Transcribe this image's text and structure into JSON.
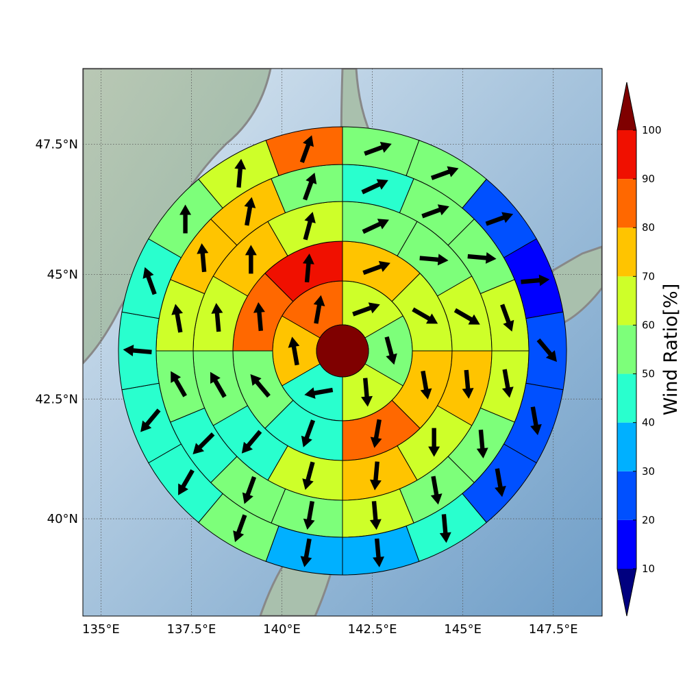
{
  "chart_data": {
    "type": "polar_sectors",
    "projection": "mercator",
    "grid": true,
    "xlim": [
      134.5,
      148.85
    ],
    "ylim": [
      37.9,
      48.9
    ],
    "xticks": [
      {
        "value": 135,
        "label": "135°E"
      },
      {
        "value": 137.5,
        "label": "137.5°E"
      },
      {
        "value": 140,
        "label": "140°E"
      },
      {
        "value": 142.5,
        "label": "142.5°E"
      },
      {
        "value": 145,
        "label": "145°E"
      },
      {
        "value": 147.5,
        "label": "147.5°E"
      }
    ],
    "yticks": [
      {
        "value": 40,
        "label": "40°N"
      },
      {
        "value": 42.5,
        "label": "42.5°N"
      },
      {
        "value": 45,
        "label": "45°N"
      },
      {
        "value": 47.5,
        "label": "47.5°N"
      }
    ],
    "center_value": 105,
    "rings": [
      {
        "values": [
          65,
          55,
          65,
          45,
          75,
          85
        ],
        "directions": [
          70,
          165,
          175,
          260,
          350,
          10
        ]
      },
      {
        "values": [
          75,
          65,
          75,
          85,
          45,
          55,
          85,
          95
        ],
        "directions": [
          70,
          120,
          170,
          190,
          200,
          320,
          355,
          5
        ]
      },
      {
        "values": [
          55,
          55,
          65,
          75,
          65,
          75,
          65,
          45,
          55,
          65,
          75,
          65
        ],
        "directions": [
          65,
          95,
          120,
          175,
          180,
          185,
          195,
          220,
          330,
          355,
          0,
          15
        ]
      },
      {
        "values": [
          45,
          55,
          55,
          65,
          65,
          55,
          55,
          65,
          55,
          55,
          45,
          55,
          65,
          75,
          75,
          55
        ],
        "directions": [
          65,
          70,
          95,
          160,
          170,
          175,
          170,
          175,
          190,
          200,
          225,
          330,
          350,
          355,
          10,
          20
        ]
      },
      {
        "values": [
          55,
          55,
          25,
          15,
          25,
          25,
          25,
          45,
          35,
          35,
          55,
          45,
          45,
          45,
          45,
          55,
          65,
          85
        ],
        "directions": [
          70,
          70,
          70,
          85,
          140,
          170,
          170,
          175,
          175,
          190,
          200,
          210,
          220,
          275,
          340,
          0,
          5,
          20
        ]
      }
    ],
    "colorbar": {
      "label": "Wind Ratio[%]",
      "ticks": [
        10,
        20,
        30,
        40,
        50,
        60,
        70,
        80,
        90,
        100
      ],
      "colors": [
        "#0000ff",
        "#0050ff",
        "#00b0ff",
        "#29ffce",
        "#7dff7a",
        "#ceff29",
        "#ffc400",
        "#ff6800",
        "#f01000"
      ],
      "under_color": "#00007f",
      "over_color": "#7f0000"
    }
  }
}
